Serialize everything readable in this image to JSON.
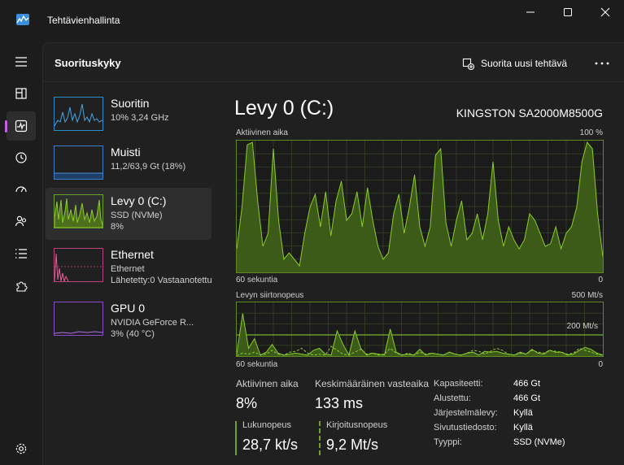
{
  "window": {
    "title": "Tehtävienhallinta"
  },
  "header": {
    "title": "Suorituskyky",
    "run_task": "Suorita uusi tehtävä"
  },
  "devices": [
    {
      "name": "Suoritin",
      "line1": "10% 3,24 GHz",
      "line2": "",
      "line3": ""
    },
    {
      "name": "Muisti",
      "line1": "11,2/63,9 Gt (18%)",
      "line2": "",
      "line3": ""
    },
    {
      "name": "Levy 0 (C:)",
      "line1": "SSD (NVMe)",
      "line2": "8%",
      "line3": ""
    },
    {
      "name": "Ethernet",
      "line1": "Ethernet",
      "line2": "Lähetetty:0 Vastaanotettu",
      "line3": ""
    },
    {
      "name": "GPU 0",
      "line1": "NVIDIA GeForce R...",
      "line2": "3% (40 °C)",
      "line3": ""
    }
  ],
  "detail": {
    "title": "Levy 0 (C:)",
    "model": "KINGSTON SA2000M8500G",
    "graph1": {
      "label": "Aktiivinen aika",
      "max": "100 %",
      "time": "60 sekuntia",
      "min": "0"
    },
    "graph2": {
      "label": "Levyn siirtonopeus",
      "max": "500 Mt/s",
      "mid": "200 Mt/s",
      "time": "60 sekuntia",
      "min": "0"
    },
    "stats": {
      "active_label": "Aktiivinen aika",
      "active_value": "8%",
      "resp_label": "Keskimääräinen vasteaika",
      "resp_value": "133 ms",
      "read_label": "Lukunopeus",
      "read_value": "28,7 kt/s",
      "write_label": "Kirjoitusnopeus",
      "write_value": "9,2 Mt/s"
    },
    "props": [
      {
        "k": "Kapasiteetti:",
        "v": "466 Gt"
      },
      {
        "k": "Alustettu:",
        "v": "466 Gt"
      },
      {
        "k": "Järjestelmälevy:",
        "v": "Kyllä"
      },
      {
        "k": "Sivutustiedosto:",
        "v": "Kyllä"
      },
      {
        "k": "Tyyppi:",
        "v": "SSD (NVMe)"
      }
    ]
  },
  "chart_data": [
    {
      "type": "area",
      "title": "Aktiivinen aika",
      "ylim": [
        0,
        100
      ],
      "values": [
        18,
        50,
        98,
        100,
        55,
        20,
        30,
        95,
        40,
        10,
        15,
        10,
        5,
        30,
        50,
        60,
        35,
        62,
        28,
        55,
        70,
        40,
        45,
        62,
        35,
        65,
        40,
        20,
        10,
        15,
        45,
        60,
        30,
        50,
        75,
        35,
        20,
        35,
        90,
        95,
        38,
        20,
        40,
        55,
        25,
        30,
        45,
        25,
        45,
        85,
        40,
        20,
        35,
        25,
        18,
        25,
        45,
        40,
        30,
        20,
        22,
        35,
        18,
        30,
        35,
        50,
        85,
        100,
        95,
        45,
        12
      ]
    },
    {
      "type": "line",
      "title": "Levyn siirtonopeus",
      "ylim": [
        0,
        500
      ],
      "series": [
        {
          "values": [
            10,
            220,
            40,
            90,
            5,
            20,
            60,
            15,
            5,
            10,
            15,
            10,
            5,
            30,
            40,
            10,
            5,
            130,
            60,
            5,
            130,
            40,
            5,
            15,
            10,
            5,
            140,
            20,
            5,
            10,
            5,
            35,
            5,
            15,
            10,
            5,
            20,
            10,
            5,
            15,
            20,
            5,
            25,
            20,
            25,
            15,
            10,
            5,
            20,
            10,
            35,
            15,
            10,
            30,
            20,
            20,
            5,
            10,
            30,
            45,
            35,
            15,
            5
          ]
        },
        {
          "values": [
            2,
            15,
            10,
            20,
            5,
            10,
            30,
            10,
            5,
            20,
            25,
            40,
            15,
            5,
            10,
            5,
            50,
            30,
            10,
            5,
            20,
            35,
            10,
            15,
            5,
            10,
            40,
            15,
            5,
            15,
            5,
            20,
            10,
            15,
            10,
            5,
            20,
            10,
            5,
            15,
            30,
            25,
            10,
            25,
            40,
            30,
            10,
            5,
            15,
            10,
            30,
            20,
            15,
            30,
            25,
            20,
            10,
            15,
            40,
            30,
            20,
            10,
            5
          ]
        }
      ]
    }
  ]
}
